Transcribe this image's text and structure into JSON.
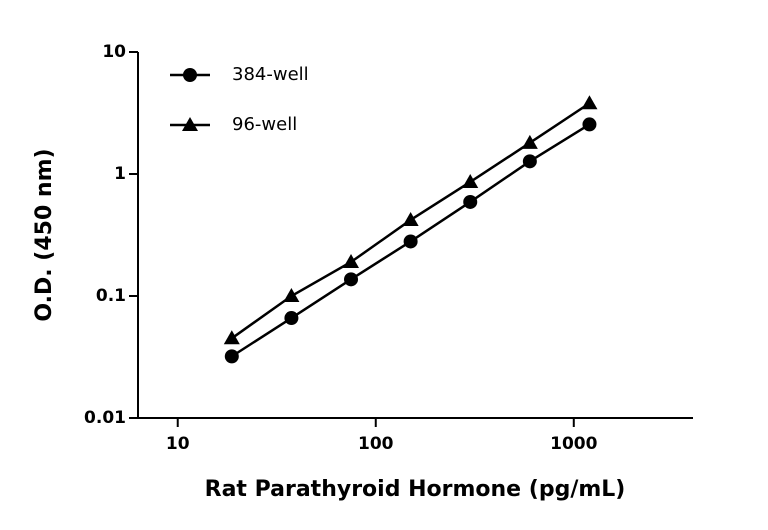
{
  "chart_data": {
    "type": "line",
    "xlabel": "Rat Parathyroid Hormone (pg/mL)",
    "ylabel": "O.D. (450 nm)",
    "xscale": "log",
    "yscale": "log",
    "xlim": [
      6.3,
      4000
    ],
    "ylim": [
      0.01,
      10
    ],
    "xticks": [
      10,
      100,
      1000
    ],
    "yticks": [
      0.01,
      0.1,
      1,
      10
    ],
    "legend": "top-left",
    "x": [
      18.75,
      37.5,
      75,
      150,
      300,
      600,
      1200
    ],
    "series": [
      {
        "name": "384-well",
        "color": "#000000",
        "marker": "circle",
        "values": [
          0.032,
          0.066,
          0.137,
          0.28,
          0.59,
          1.27,
          2.55
        ]
      },
      {
        "name": "96-well",
        "color": "#000000",
        "marker": "triangle",
        "values": [
          0.045,
          0.1,
          0.19,
          0.42,
          0.86,
          1.8,
          3.8
        ]
      }
    ]
  }
}
